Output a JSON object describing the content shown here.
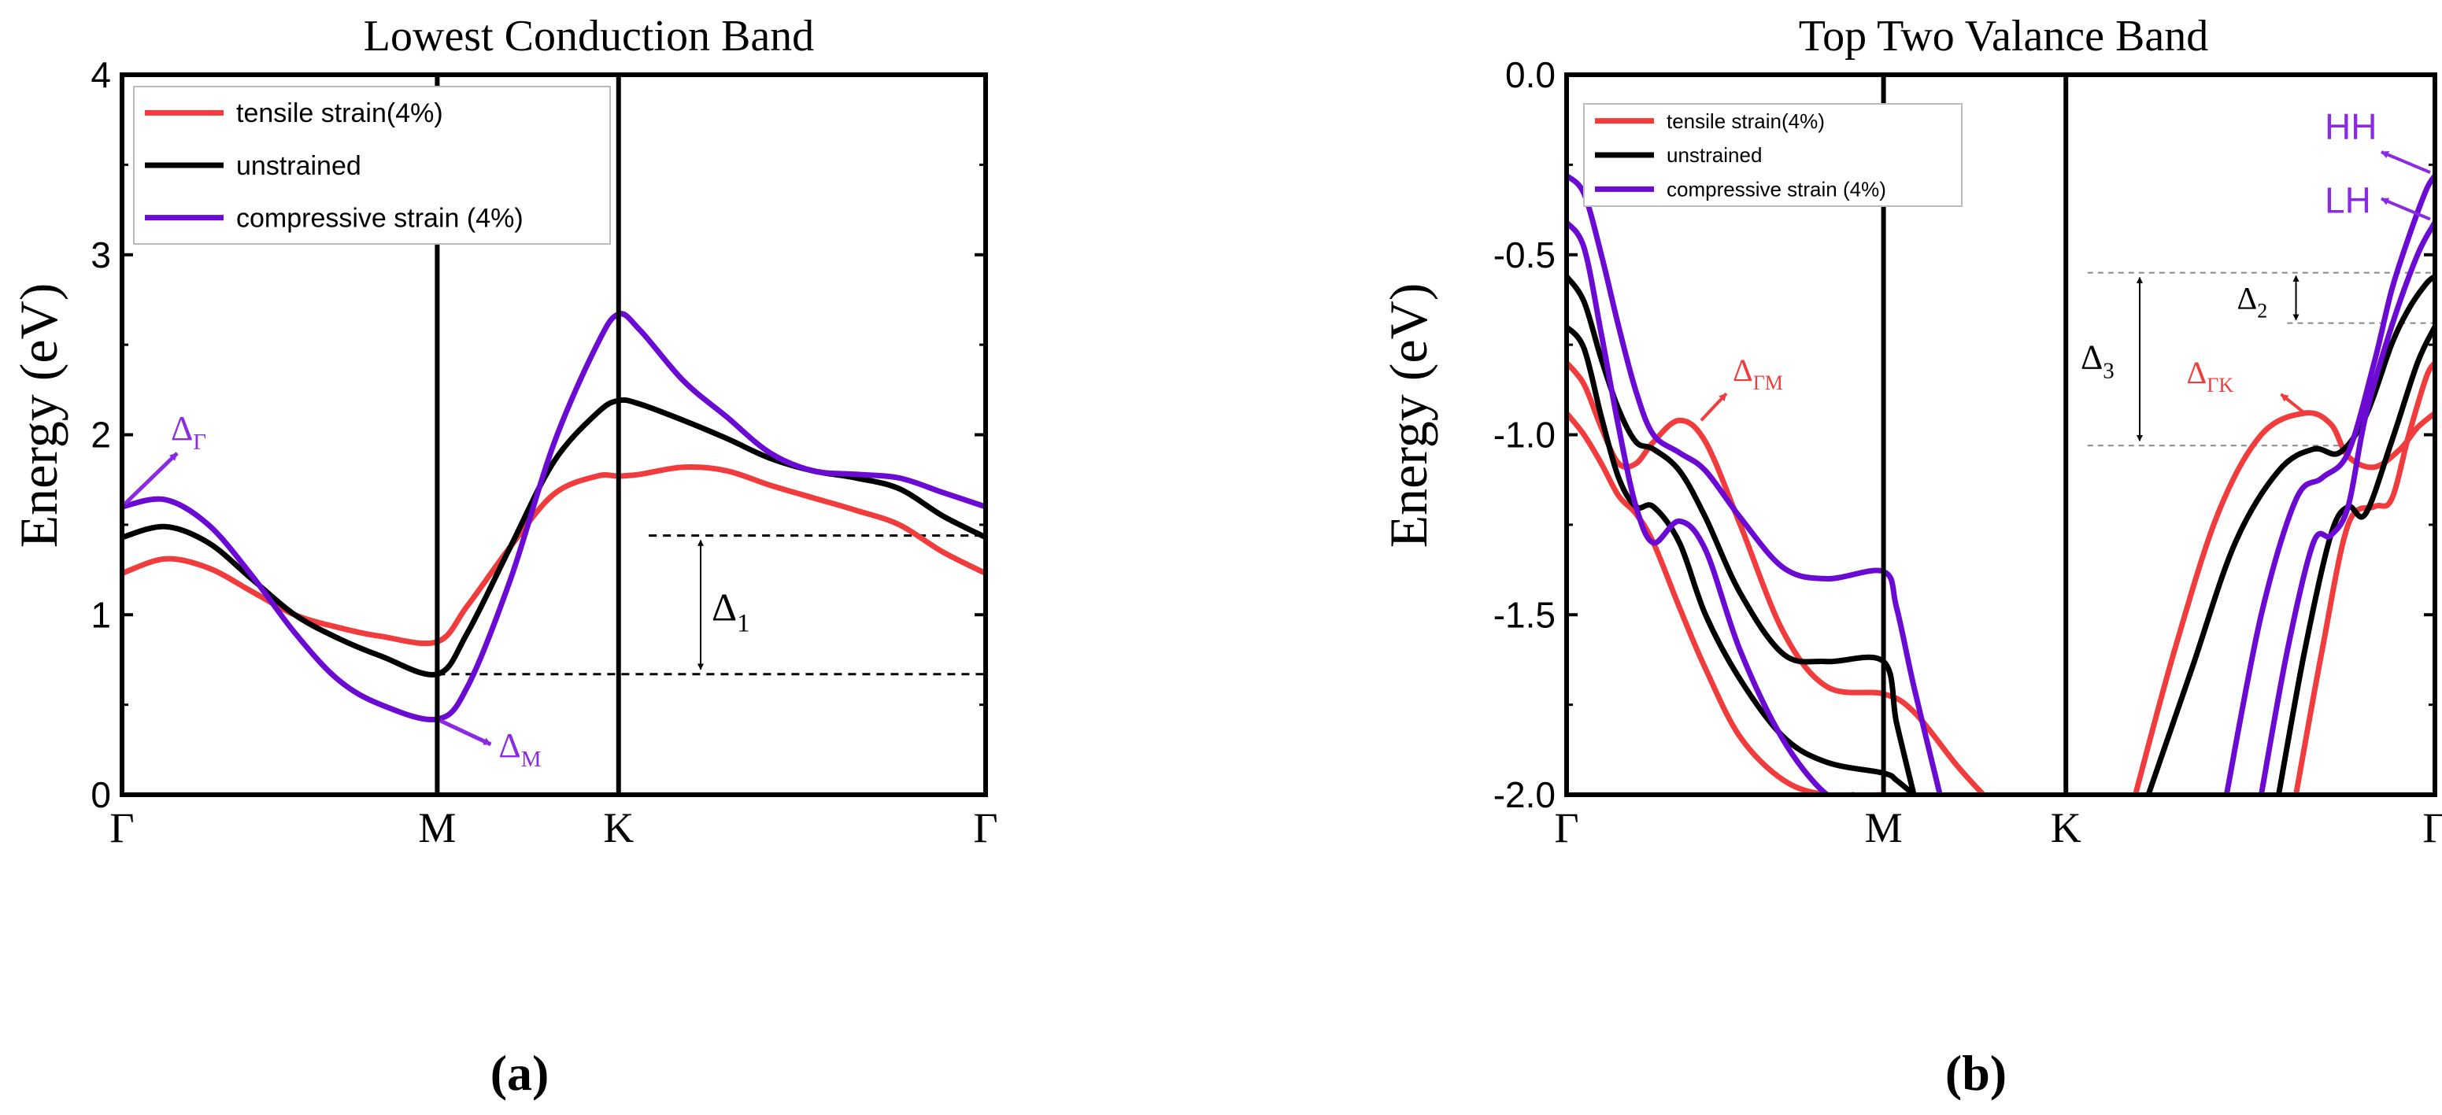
{
  "colors": {
    "tensile": "#f03c3c",
    "unstrained": "#000000",
    "compressive": "#6a0ad2",
    "axis": "#000000"
  },
  "chart_data": [
    {
      "panel_label": "(a)",
      "type": "line",
      "title": "Lowest Conduction Band",
      "xlabel": "",
      "ylabel": "Energy (eV)",
      "xlim": [
        0,
        1
      ],
      "ylim": [
        0,
        4
      ],
      "yticks": [
        0,
        1,
        2,
        3,
        4
      ],
      "ytick_labels": [
        "0",
        "1",
        "2",
        "3",
        "4"
      ],
      "xticks": [
        {
          "pos": 0.0,
          "label": "Γ"
        },
        {
          "pos": 0.365,
          "label": "M"
        },
        {
          "pos": 0.575,
          "label": "K"
        },
        {
          "pos": 1.0,
          "label": "Γ"
        }
      ],
      "vlines": [
        0.365,
        0.575
      ],
      "legend": [
        {
          "label": "tensile strain(4%)",
          "series": "tensile"
        },
        {
          "label": "unstrained",
          "series": "unstrained"
        },
        {
          "label": "compressive strain (4%)",
          "series": "compressive"
        }
      ],
      "series": [
        {
          "name": "tensile",
          "x": [
            0,
            0.05,
            0.1,
            0.15,
            0.2,
            0.25,
            0.3,
            0.365,
            0.4,
            0.45,
            0.5,
            0.55,
            0.575,
            0.6,
            0.65,
            0.7,
            0.75,
            0.8,
            0.85,
            0.9,
            0.95,
            1.0
          ],
          "y": [
            1.23,
            1.31,
            1.26,
            1.13,
            1.0,
            0.93,
            0.88,
            0.85,
            1.05,
            1.38,
            1.67,
            1.77,
            1.77,
            1.78,
            1.82,
            1.8,
            1.72,
            1.65,
            1.58,
            1.5,
            1.35,
            1.23
          ]
        },
        {
          "name": "unstrained",
          "x": [
            0,
            0.05,
            0.1,
            0.15,
            0.2,
            0.25,
            0.3,
            0.365,
            0.4,
            0.45,
            0.5,
            0.55,
            0.575,
            0.6,
            0.65,
            0.7,
            0.75,
            0.8,
            0.85,
            0.9,
            0.95,
            1.0
          ],
          "y": [
            1.43,
            1.49,
            1.4,
            1.2,
            1.0,
            0.87,
            0.77,
            0.67,
            0.9,
            1.38,
            1.85,
            2.12,
            2.19,
            2.17,
            2.08,
            1.98,
            1.87,
            1.8,
            1.76,
            1.7,
            1.55,
            1.43
          ]
        },
        {
          "name": "compressive",
          "x": [
            0,
            0.05,
            0.1,
            0.15,
            0.2,
            0.25,
            0.3,
            0.365,
            0.4,
            0.45,
            0.5,
            0.55,
            0.575,
            0.6,
            0.65,
            0.7,
            0.75,
            0.8,
            0.85,
            0.9,
            0.95,
            1.0
          ],
          "y": [
            1.6,
            1.64,
            1.5,
            1.22,
            0.9,
            0.64,
            0.5,
            0.42,
            0.6,
            1.2,
            1.95,
            2.5,
            2.67,
            2.58,
            2.3,
            2.1,
            1.9,
            1.8,
            1.78,
            1.76,
            1.68,
            1.6
          ]
        }
      ],
      "reference_lines": [
        {
          "y": 1.44,
          "x_from": 0.61,
          "x_to": 1.0
        },
        {
          "y": 0.67,
          "x_from": 0.365,
          "x_to": 1.0
        }
      ],
      "annotations": {
        "delta1": {
          "text": "Δ",
          "sub": "1",
          "x": 0.67,
          "y_top": 1.44,
          "y_bottom": 0.67
        },
        "delta_gamma": {
          "text": "Δ",
          "sub": "Γ",
          "x": 0.0,
          "y": 1.6
        },
        "delta_m": {
          "text": "Δ",
          "sub": "M",
          "x": 0.365,
          "y": 0.42
        }
      }
    },
    {
      "panel_label": "(b)",
      "type": "line",
      "title": "Top Two Valance Band",
      "xlabel": "",
      "ylabel": "Energy (eV)",
      "xlim": [
        0,
        1
      ],
      "ylim": [
        -2.0,
        0.0
      ],
      "yticks": [
        0.0,
        -0.5,
        -1.0,
        -1.5,
        -2.0
      ],
      "ytick_labels": [
        "0.0",
        "-0.5",
        "-1.0",
        "-1.5",
        "-2.0"
      ],
      "xticks": [
        {
          "pos": 0.0,
          "label": "Γ"
        },
        {
          "pos": 0.365,
          "label": "M"
        },
        {
          "pos": 0.575,
          "label": "K"
        },
        {
          "pos": 1.0,
          "label": "Γ"
        }
      ],
      "vlines": [
        0.365,
        0.575
      ],
      "legend": [
        {
          "label": "tensile strain(4%)",
          "series": "tensile"
        },
        {
          "label": "unstrained",
          "series": "unstrained"
        },
        {
          "label": "compressive strain (4%)",
          "series": "compressive"
        }
      ],
      "series": [
        {
          "name": "tensile",
          "group": "upper",
          "x": [
            0,
            0.02,
            0.04,
            0.06,
            0.08,
            0.1,
            0.13,
            0.16,
            0.2,
            0.25,
            0.3,
            0.365,
            0.4,
            0.45,
            0.48
          ],
          "y": [
            -0.8,
            -0.86,
            -0.98,
            -1.08,
            -1.08,
            -1.02,
            -0.96,
            -1.02,
            -1.25,
            -1.55,
            -1.7,
            -1.72,
            -1.77,
            -1.92,
            -2.0
          ]
        },
        {
          "name": "tensile",
          "group": "lower",
          "x": [
            0,
            0.02,
            0.04,
            0.06,
            0.08,
            0.1,
            0.13,
            0.16,
            0.2,
            0.25,
            0.3,
            0.365
          ],
          "y": [
            -0.94,
            -1.0,
            -1.08,
            -1.17,
            -1.22,
            -1.3,
            -1.48,
            -1.65,
            -1.84,
            -1.96,
            -2.0,
            -2.0
          ]
        },
        {
          "name": "unstrained",
          "group": "upper",
          "x": [
            0,
            0.02,
            0.04,
            0.06,
            0.08,
            0.1,
            0.13,
            0.16,
            0.2,
            0.25,
            0.3,
            0.365,
            0.38,
            0.4
          ],
          "y": [
            -0.56,
            -0.63,
            -0.79,
            -0.93,
            -1.02,
            -1.04,
            -1.1,
            -1.23,
            -1.44,
            -1.61,
            -1.63,
            -1.63,
            -1.8,
            -2.0
          ]
        },
        {
          "name": "unstrained",
          "group": "lower",
          "x": [
            0,
            0.02,
            0.04,
            0.06,
            0.08,
            0.1,
            0.13,
            0.16,
            0.2,
            0.25,
            0.3,
            0.365,
            0.38,
            0.4
          ],
          "y": [
            -0.7,
            -0.76,
            -0.95,
            -1.12,
            -1.2,
            -1.2,
            -1.3,
            -1.5,
            -1.68,
            -1.84,
            -1.91,
            -1.94,
            -1.96,
            -2.0
          ]
        },
        {
          "name": "compressive",
          "group": "upper",
          "x": [
            0,
            0.02,
            0.04,
            0.06,
            0.08,
            0.1,
            0.13,
            0.16,
            0.2,
            0.25,
            0.3,
            0.365,
            0.38,
            0.4,
            0.43
          ],
          "y": [
            -0.28,
            -0.33,
            -0.5,
            -0.7,
            -0.88,
            -1.0,
            -1.05,
            -1.1,
            -1.23,
            -1.37,
            -1.4,
            -1.38,
            -1.48,
            -1.7,
            -2.0
          ]
        },
        {
          "name": "compressive",
          "group": "lower",
          "x": [
            0,
            0.02,
            0.04,
            0.06,
            0.08,
            0.1,
            0.13,
            0.16,
            0.2,
            0.25,
            0.3,
            0.33
          ],
          "y": [
            -0.41,
            -0.48,
            -0.72,
            -0.98,
            -1.2,
            -1.3,
            -1.24,
            -1.32,
            -1.6,
            -1.85,
            -2.0,
            -2.0
          ]
        },
        {
          "name": "tensile",
          "group": "kgamma-upper",
          "x": [
            0.655,
            0.7,
            0.75,
            0.8,
            0.85,
            0.88,
            0.9,
            0.93,
            0.96,
            0.98,
            1.0
          ],
          "y": [
            -2.0,
            -1.6,
            -1.22,
            -1.0,
            -0.94,
            -0.97,
            -1.06,
            -1.09,
            -1.04,
            -0.98,
            -0.94
          ]
        },
        {
          "name": "tensile",
          "group": "kgamma-lower",
          "x": [
            0.84,
            0.87,
            0.9,
            0.93,
            0.95,
            0.97,
            0.99,
            1.0
          ],
          "y": [
            -2.0,
            -1.6,
            -1.25,
            -1.2,
            -1.18,
            -1.0,
            -0.84,
            -0.8
          ]
        },
        {
          "name": "unstrained",
          "group": "kgamma-upper",
          "x": [
            0.67,
            0.72,
            0.77,
            0.82,
            0.86,
            0.89,
            0.92,
            0.95,
            0.97,
            0.99,
            1.0
          ],
          "y": [
            -2.0,
            -1.65,
            -1.3,
            -1.1,
            -1.04,
            -1.05,
            -0.95,
            -0.75,
            -0.65,
            -0.58,
            -0.56
          ]
        },
        {
          "name": "unstrained",
          "group": "kgamma-lower",
          "x": [
            0.82,
            0.85,
            0.88,
            0.9,
            0.92,
            0.95,
            0.98,
            1.0
          ],
          "y": [
            -2.0,
            -1.6,
            -1.28,
            -1.2,
            -1.22,
            -1.02,
            -0.8,
            -0.7
          ]
        },
        {
          "name": "compressive",
          "group": "kgamma-upper",
          "x": [
            0.76,
            0.8,
            0.84,
            0.87,
            0.9,
            0.93,
            0.95,
            0.97,
            0.99,
            1.0
          ],
          "y": [
            -2.0,
            -1.5,
            -1.18,
            -1.12,
            -1.05,
            -0.8,
            -0.6,
            -0.45,
            -0.32,
            -0.28
          ]
        },
        {
          "name": "compressive",
          "group": "kgamma-lower",
          "x": [
            0.8,
            0.83,
            0.86,
            0.88,
            0.9,
            0.92,
            0.95,
            0.98,
            1.0
          ],
          "y": [
            -2.0,
            -1.6,
            -1.3,
            -1.28,
            -1.2,
            -0.95,
            -0.7,
            -0.5,
            -0.41
          ]
        }
      ],
      "reference_lines": [
        {
          "y": -0.55,
          "x_from": 0.6,
          "x_to": 1.0
        },
        {
          "y": -0.69,
          "x_from": 0.83,
          "x_to": 1.0
        },
        {
          "y": -1.03,
          "x_from": 0.6,
          "x_to": 0.9
        }
      ],
      "annotations": {
        "delta2": {
          "text": "Δ",
          "sub": "2",
          "x": 0.84,
          "y_top": -0.55,
          "y_bottom": -0.69
        },
        "delta3": {
          "text": "Δ",
          "sub": "3",
          "x": 0.66,
          "y_top": -0.55,
          "y_bottom": -1.03
        },
        "delta_gm": {
          "text": "Δ",
          "sub": "ΓM",
          "x": 0.155,
          "y": -0.96
        },
        "delta_gk": {
          "text": "Δ",
          "sub": "ΓK",
          "x": 0.85,
          "y": -0.94
        },
        "hh": {
          "text": "HH",
          "x": 1.0,
          "y": -0.28
        },
        "lh": {
          "text": "LH",
          "x": 1.0,
          "y": -0.41
        }
      }
    }
  ]
}
